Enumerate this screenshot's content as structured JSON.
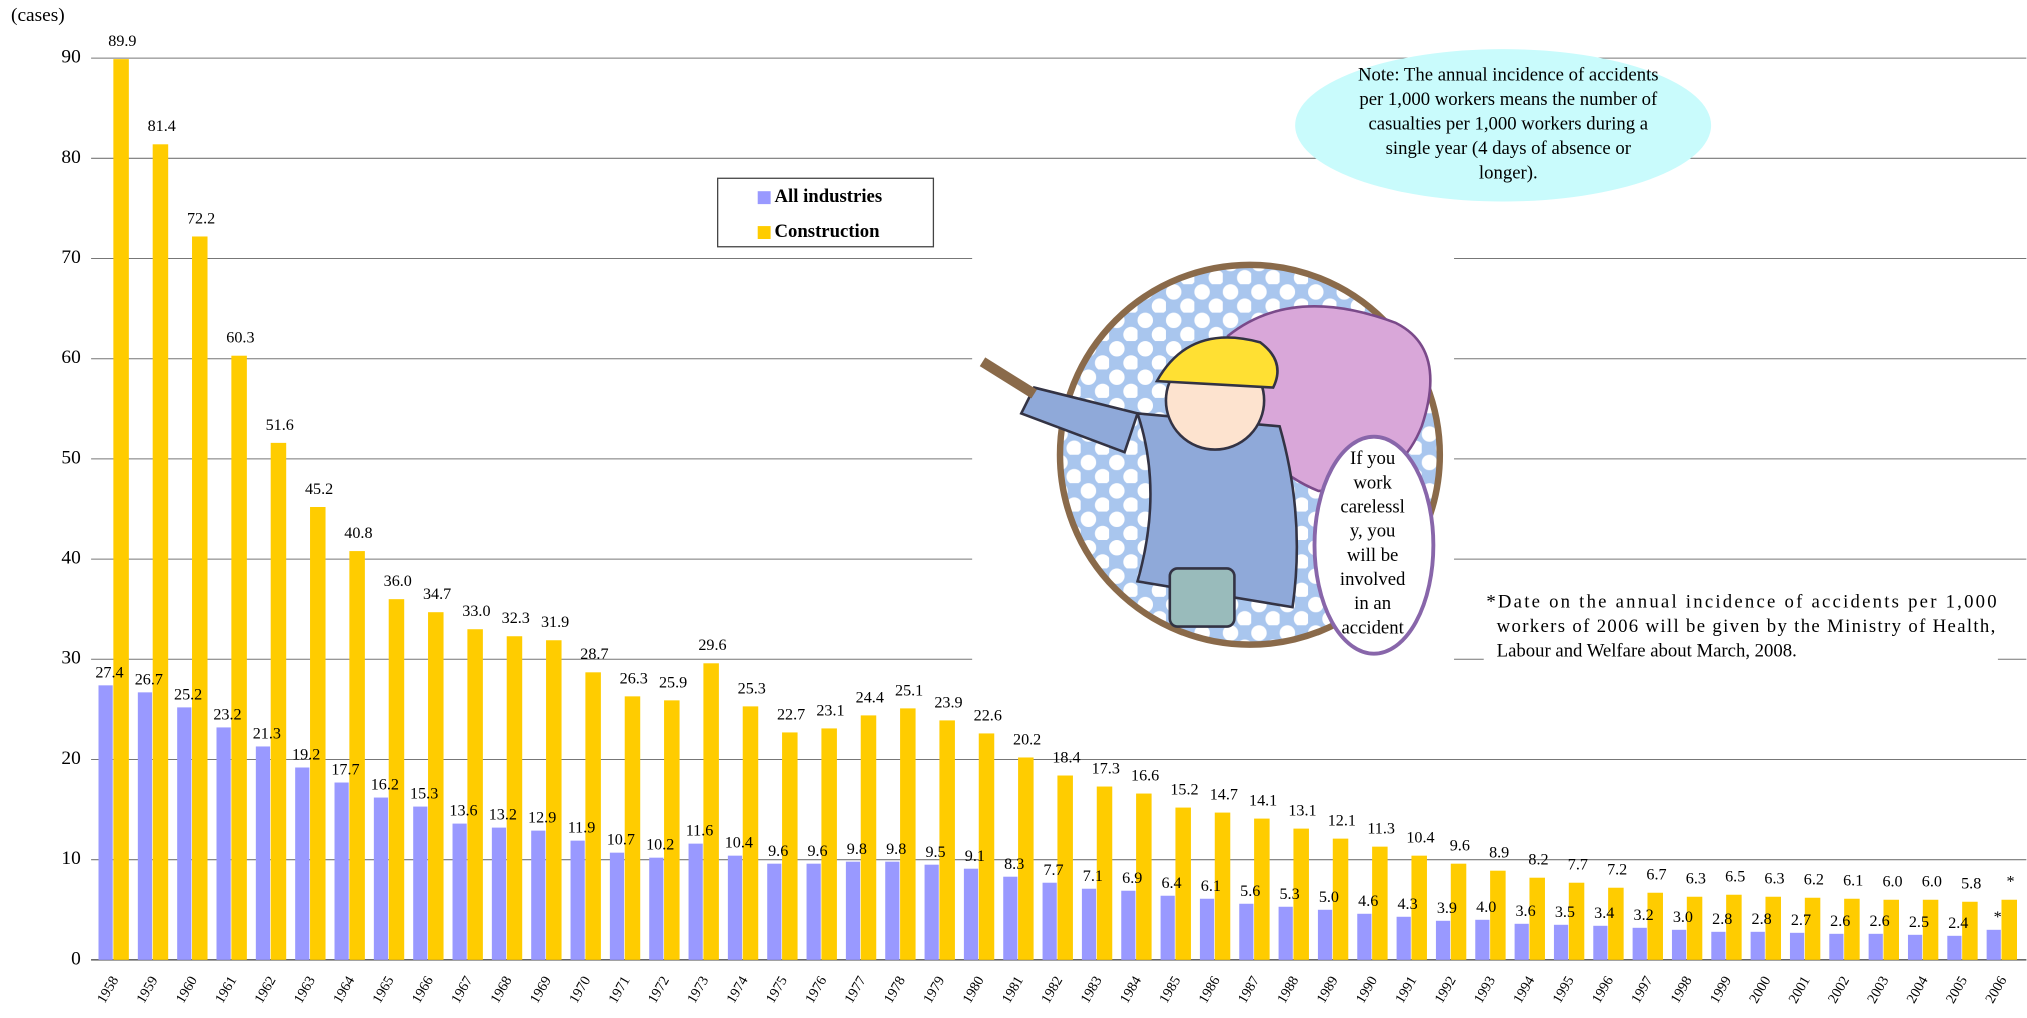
{
  "chart_data": {
    "type": "bar",
    "y_unit_label": "(cases)",
    "categories": [
      "1958",
      "1959",
      "1960",
      "1961",
      "1962",
      "1963",
      "1964",
      "1965",
      "1966",
      "1967",
      "1968",
      "1969",
      "1970",
      "1971",
      "1972",
      "1973",
      "1974",
      "1975",
      "1976",
      "1977",
      "1978",
      "1979",
      "1980",
      "1981",
      "1982",
      "1983",
      "1984",
      "1985",
      "1986",
      "1987",
      "1988",
      "1989",
      "1990",
      "1991",
      "1992",
      "1993",
      "1994",
      "1995",
      "1996",
      "1997",
      "1998",
      "1999",
      "2000",
      "2001",
      "2002",
      "2003",
      "2004",
      "2005",
      "2006"
    ],
    "series": [
      {
        "name": "All industries",
        "color": "#9999ff",
        "values": [
          27.4,
          26.7,
          25.2,
          23.2,
          21.3,
          19.2,
          17.7,
          16.2,
          15.3,
          13.6,
          13.2,
          12.9,
          11.9,
          10.7,
          10.2,
          11.6,
          10.4,
          9.6,
          9.6,
          9.8,
          9.8,
          9.5,
          9.1,
          8.3,
          7.7,
          7.1,
          6.9,
          6.4,
          6.1,
          5.6,
          5.3,
          5.0,
          4.6,
          4.3,
          3.9,
          4.0,
          3.6,
          3.5,
          3.4,
          3.2,
          3.0,
          2.8,
          2.8,
          2.7,
          2.6,
          2.6,
          2.5,
          2.4,
          3.0
        ],
        "value_labels": [
          "27.4",
          "26.7",
          "25.2",
          "23.2",
          "21.3",
          "19.2",
          "17.7",
          "16.2",
          "15.3",
          "13.6",
          "13.2",
          "12.9",
          "11.9",
          "10.7",
          "10.2",
          "11.6",
          "10.4",
          "9.6",
          "9.6",
          "9.8",
          "9.8",
          "9.5",
          "9.1",
          "8.3",
          "7.7",
          "7.1",
          "6.9",
          "6.4",
          "6.1",
          "5.6",
          "5.3",
          "5.0",
          "4.6",
          "4.3",
          "3.9",
          "4.0",
          "3.6",
          "3.5",
          "3.4",
          "3.2",
          "3.0",
          "2.8",
          "2.8",
          "2.7",
          "2.6",
          "2.6",
          "2.5",
          "2.4",
          "*"
        ]
      },
      {
        "name": "Construction",
        "color": "#ffcc00",
        "values": [
          89.9,
          81.4,
          72.2,
          60.3,
          51.6,
          45.2,
          40.8,
          36.0,
          34.7,
          33.0,
          32.3,
          31.9,
          28.7,
          26.3,
          25.9,
          29.6,
          25.3,
          22.7,
          23.1,
          24.4,
          25.1,
          23.9,
          22.6,
          20.2,
          18.4,
          17.3,
          16.6,
          15.2,
          14.7,
          14.1,
          13.1,
          12.1,
          11.3,
          10.4,
          9.6,
          8.9,
          8.2,
          7.7,
          7.2,
          6.7,
          6.3,
          6.5,
          6.3,
          6.2,
          6.1,
          6.0,
          6.0,
          5.8,
          6.0
        ],
        "value_labels": [
          "89.9",
          "81.4",
          "72.2",
          "60.3",
          "51.6",
          "45.2",
          "40.8",
          "36.0",
          "34.7",
          "33.0",
          "32.3",
          "31.9",
          "28.7",
          "26.3",
          "25.9",
          "29.6",
          "25.3",
          "22.7",
          "23.1",
          "24.4",
          "25.1",
          "23.9",
          "22.6",
          "20.2",
          "18.4",
          "17.3",
          "16.6",
          "15.2",
          "14.7",
          "14.1",
          "13.1",
          "12.1",
          "11.3",
          "10.4",
          "9.6",
          "8.9",
          "8.2",
          "7.7",
          "7.2",
          "6.7",
          "6.3",
          "6.5",
          "6.3",
          "6.2",
          "6.1",
          "6.0",
          "6.0",
          "5.8",
          "*"
        ]
      }
    ],
    "ylim": [
      0,
      90
    ],
    "yticks": [
      0,
      10,
      20,
      30,
      40,
      50,
      60,
      70,
      80,
      90
    ],
    "grid": true,
    "legend": "upper center",
    "note": [
      "Note: The annual incidence of accidents",
      "per 1,000 workers means the number of",
      "casualties per 1,000 workers during a",
      "single year (4 days of absence or",
      "longer)."
    ],
    "footnote": [
      "*Date on the annual incidence of accidents per 1,000",
      "workers of 2006 will be given by the Ministry of Health,",
      "Labour and Welfare about March, 2008."
    ],
    "speech_bubble": [
      "If you",
      "work",
      "carelessl",
      "y, you",
      "will be",
      "involved",
      "in an",
      "accident"
    ]
  }
}
